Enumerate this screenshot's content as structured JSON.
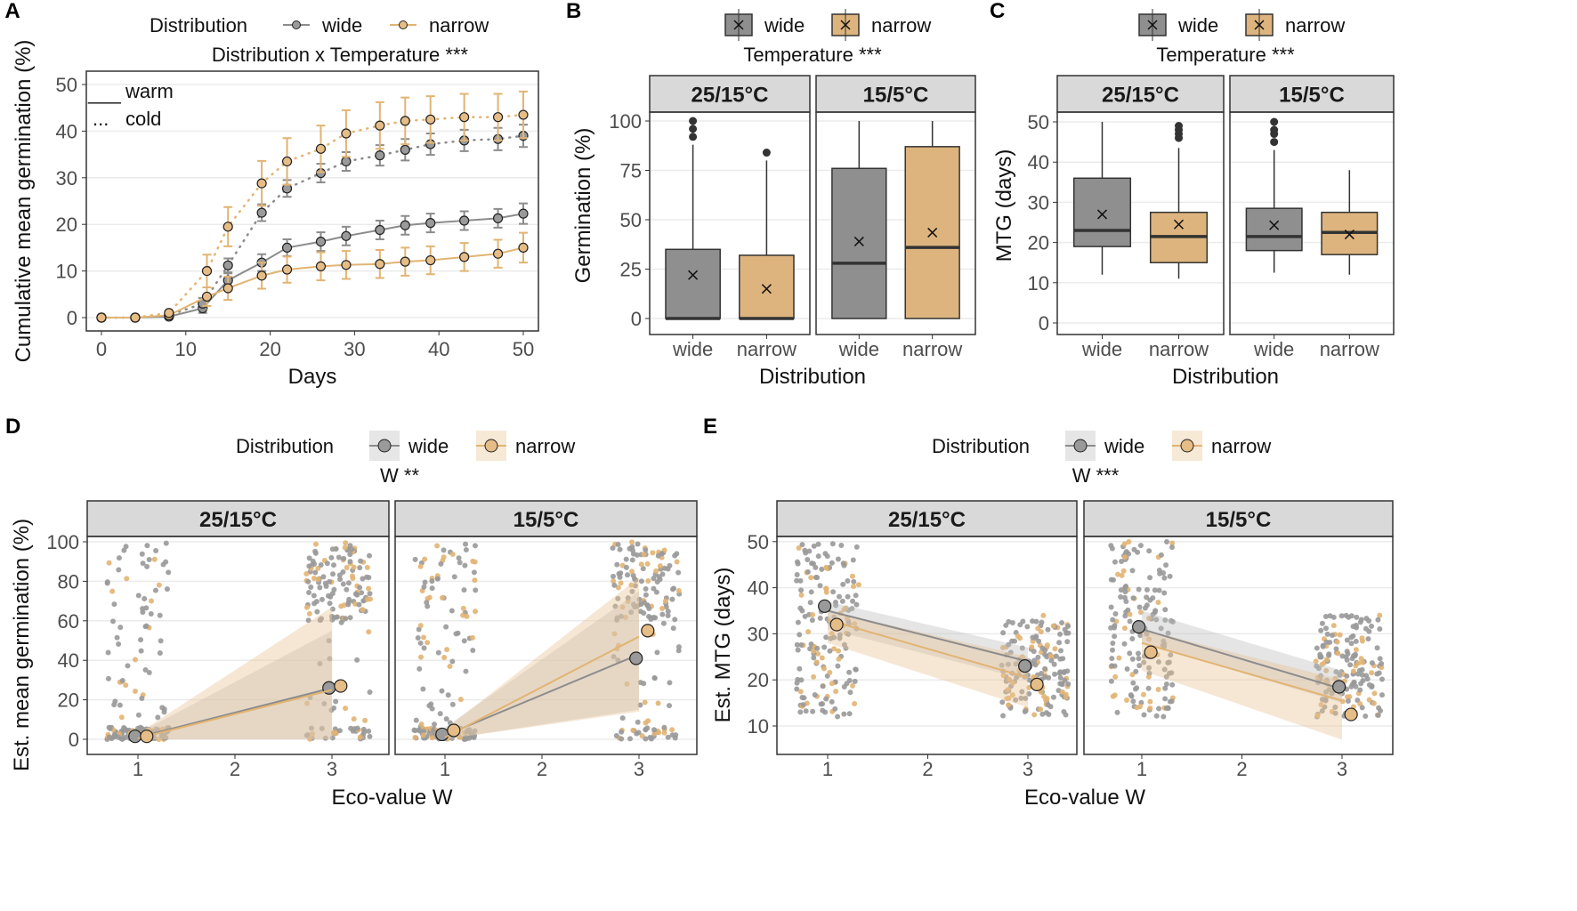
{
  "colors": {
    "wide": "#8c8c8c",
    "wide_fill": "#9a9a9a",
    "narrow": "#e2b473",
    "narrow_fill": "#e6bd86",
    "strip": "#d9d9d9",
    "grid": "#ebebeb"
  },
  "legend": {
    "title": "Distribution",
    "wide": "wide",
    "narrow": "narrow"
  },
  "chart_data": [
    {
      "panel": "A",
      "type": "line",
      "subtitle": "Distribution x Temperature ***",
      "xlabel": "Days",
      "ylabel": "Cumulative mean germination (%)",
      "xlim": [
        -1,
        52
      ],
      "ylim": [
        -2,
        52
      ],
      "xticks": [
        0,
        10,
        20,
        30,
        40,
        50
      ],
      "yticks": [
        0,
        10,
        20,
        30,
        40,
        50
      ],
      "linetype_legend": {
        "warm": "warm",
        "cold": "cold",
        "warm_key": "___",
        "cold_key": "..."
      },
      "series": [
        {
          "name": "wide",
          "temp": "warm",
          "x": [
            0,
            4,
            8,
            12,
            15,
            19,
            22,
            26,
            29,
            33,
            36,
            39,
            43,
            47,
            50
          ],
          "y": [
            0,
            0,
            0.2,
            2,
            8,
            11.8,
            15,
            16.3,
            17.5,
            18.8,
            19.8,
            20.3,
            20.8,
            21.3,
            22.3
          ],
          "err": [
            0,
            0,
            0.5,
            1,
            1.5,
            1.8,
            1.8,
            2,
            2,
            2,
            2,
            2,
            2,
            2,
            2.2
          ]
        },
        {
          "name": "wide",
          "temp": "cold",
          "x": [
            0,
            4,
            8,
            12,
            15,
            19,
            22,
            26,
            29,
            33,
            36,
            39,
            43,
            47,
            50
          ],
          "y": [
            0,
            0,
            0.5,
            3,
            11.2,
            22.5,
            27.7,
            31,
            33.5,
            34.8,
            36,
            37.2,
            38,
            38.3,
            39
          ],
          "err": [
            0,
            0,
            0.5,
            1.2,
            1.5,
            1.8,
            1.8,
            2,
            2,
            2.2,
            2.3,
            2.3,
            2.3,
            2.4,
            2.4
          ]
        },
        {
          "name": "narrow",
          "temp": "warm",
          "x": [
            0,
            4,
            8,
            12.5,
            15,
            19,
            22,
            26,
            29,
            33,
            36,
            39,
            43,
            47,
            50
          ],
          "y": [
            0,
            0,
            0.5,
            4.5,
            6.3,
            9,
            10.3,
            11,
            11.3,
            11.5,
            12,
            12.3,
            13,
            13.7,
            15
          ],
          "err": [
            0,
            0,
            0.5,
            2,
            2.5,
            2.8,
            2.8,
            3,
            3,
            3,
            3,
            3,
            3,
            3,
            3.2
          ]
        },
        {
          "name": "narrow",
          "temp": "cold",
          "x": [
            0,
            4,
            8,
            12.5,
            15,
            19,
            22,
            26,
            29,
            33,
            36,
            39,
            43,
            47,
            50
          ],
          "y": [
            0,
            0,
            1,
            10,
            19.5,
            28.8,
            33.5,
            36.2,
            39.5,
            41.2,
            42.2,
            42.5,
            43,
            43,
            43.5
          ],
          "err": [
            0,
            0,
            0.6,
            3.5,
            4.2,
            4.8,
            5,
            5,
            5,
            5,
            5,
            5,
            5,
            5,
            5
          ]
        }
      ]
    },
    {
      "panel": "B",
      "type": "box",
      "subtitle": "Temperature ***",
      "xlabel": "Distribution",
      "ylabel": "Germination (%)",
      "ylim": [
        -5,
        105
      ],
      "yticks": [
        0,
        25,
        50,
        75,
        100
      ],
      "facets": [
        {
          "label": "25/15°C",
          "boxes": [
            {
              "group": "wide",
              "min": 0,
              "q1": 0,
              "median": 0,
              "q3": 35,
              "max": 88,
              "mean": 22,
              "outliers": [
                92,
                96,
                100
              ]
            },
            {
              "group": "narrow",
              "min": 0,
              "q1": 0,
              "median": 0,
              "q3": 32,
              "max": 80,
              "mean": 15,
              "outliers": [
                84
              ]
            }
          ]
        },
        {
          "label": "15/5°C",
          "boxes": [
            {
              "group": "wide",
              "min": 0,
              "q1": 0,
              "median": 28,
              "q3": 76,
              "max": 100,
              "mean": 39,
              "outliers": []
            },
            {
              "group": "narrow",
              "min": 0,
              "q1": 0,
              "median": 36,
              "q3": 87,
              "max": 100,
              "mean": 43.5,
              "outliers": []
            }
          ]
        }
      ]
    },
    {
      "panel": "C",
      "type": "box",
      "subtitle": "Temperature ***",
      "xlabel": "Distribution",
      "ylabel": "MTG (days)",
      "ylim": [
        -1,
        53
      ],
      "yticks": [
        0,
        10,
        20,
        30,
        40,
        50
      ],
      "facets": [
        {
          "label": "25/15°C",
          "boxes": [
            {
              "group": "wide",
              "min": 12,
              "q1": 19,
              "median": 23,
              "q3": 36,
              "max": 50,
              "mean": 27,
              "outliers": []
            },
            {
              "group": "narrow",
              "min": 11,
              "q1": 15,
              "median": 21.5,
              "q3": 27.5,
              "max": 43.5,
              "mean": 24.5,
              "outliers": [
                46,
                47,
                48,
                49
              ]
            }
          ]
        },
        {
          "label": "15/5°C",
          "boxes": [
            {
              "group": "wide",
              "min": 12.5,
              "q1": 18,
              "median": 21.5,
              "q3": 28.5,
              "max": 43,
              "mean": 24.3,
              "outliers": [
                45,
                47,
                48,
                50
              ]
            },
            {
              "group": "narrow",
              "min": 12,
              "q1": 17,
              "median": 22.5,
              "q3": 27.5,
              "max": 38,
              "mean": 22,
              "outliers": []
            }
          ]
        }
      ]
    },
    {
      "panel": "D",
      "type": "scatter",
      "subtitle": "W **",
      "xlabel": "Eco-value W",
      "ylabel": "Est. mean germination (%)",
      "xlim": [
        0.5,
        3.6
      ],
      "ylim": [
        -5,
        105
      ],
      "xticks": [
        1,
        2,
        3
      ],
      "yticks": [
        0,
        20,
        40,
        60,
        80,
        100
      ],
      "facets": [
        {
          "label": "25/15°C",
          "means": {
            "wide": [
              [
                1,
                1.5
              ],
              [
                3,
                26
              ]
            ],
            "narrow": [
              [
                1,
                1.5
              ],
              [
                3,
                27
              ]
            ]
          },
          "fit": {
            "wide": {
              "y": [
                1,
                26
              ],
              "lo": [
                0,
                0
              ],
              "hi": [
                3,
                55
              ]
            },
            "narrow": {
              "y": [
                0.5,
                25
              ],
              "lo": [
                0,
                0
              ],
              "hi": [
                3,
                67
              ]
            }
          }
        },
        {
          "label": "15/5°C",
          "means": {
            "wide": [
              [
                1,
                2.5
              ],
              [
                3,
                41
              ]
            ],
            "narrow": [
              [
                1,
                4.5
              ],
              [
                3,
                55
              ]
            ]
          },
          "fit": {
            "wide": {
              "y": [
                2,
                43
              ],
              "lo": [
                0,
                15
              ],
              "hi": [
                6,
                75
              ]
            },
            "narrow": {
              "y": [
                1,
                52
              ],
              "lo": [
                0,
                14
              ],
              "hi": [
                5,
                82
              ]
            }
          }
        }
      ]
    },
    {
      "panel": "E",
      "type": "scatter",
      "subtitle": "W ***",
      "xlabel": "Eco-value W",
      "ylabel": "Est. MTG (days)",
      "xlim": [
        0.5,
        3.6
      ],
      "ylim": [
        7,
        52
      ],
      "xticks": [
        1,
        2,
        3
      ],
      "yticks": [
        10,
        20,
        30,
        40,
        50
      ],
      "facets": [
        {
          "label": "25/15°C",
          "means": {
            "wide": [
              [
                1,
                36
              ],
              [
                3,
                23
              ]
            ],
            "narrow": [
              [
                1,
                32
              ],
              [
                3,
                19
              ]
            ]
          },
          "fit": {
            "wide": {
              "y": [
                35,
                24
              ],
              "lo": [
                31,
                20
              ],
              "hi": [
                37,
                27
              ]
            },
            "narrow": {
              "y": [
                33,
                20.5
              ],
              "lo": [
                28,
                14
              ],
              "hi": [
                35,
                25
              ]
            }
          }
        },
        {
          "label": "15/5°C",
          "means": {
            "wide": [
              [
                1,
                31.5
              ],
              [
                3,
                18.5
              ]
            ],
            "narrow": [
              [
                1,
                26
              ],
              [
                3,
                12.5
              ]
            ]
          },
          "fit": {
            "wide": {
              "y": [
                31,
                18
              ],
              "lo": [
                28,
                15
              ],
              "hi": [
                35,
                22
              ]
            },
            "narrow": {
              "y": [
                28,
                15.5
              ],
              "lo": [
                22,
                7
              ],
              "hi": [
                31,
                20
              ]
            }
          }
        }
      ]
    }
  ]
}
